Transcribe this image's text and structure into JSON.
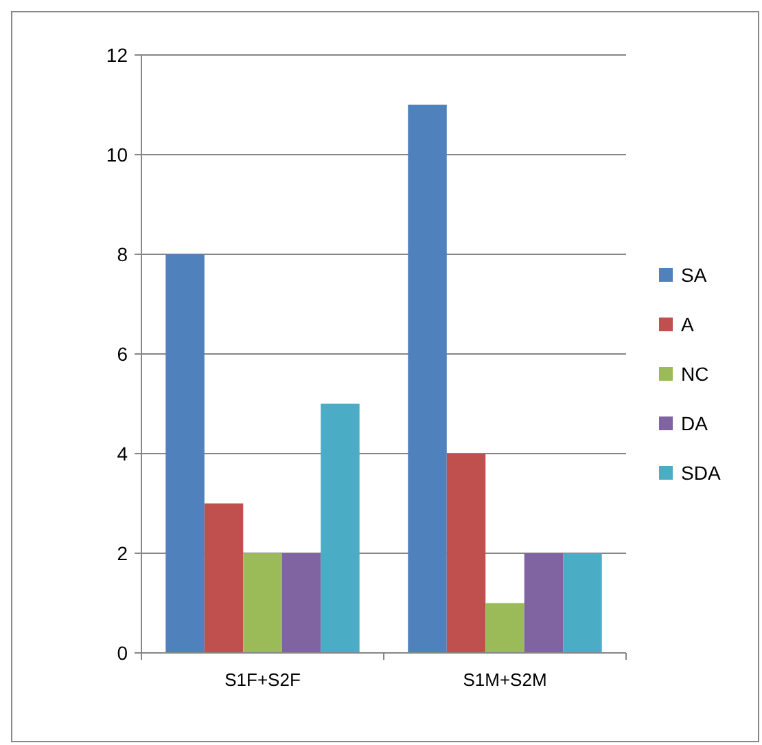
{
  "chart_data": {
    "type": "bar",
    "categories": [
      "S1F+S2F",
      "S1M+S2M"
    ],
    "series": [
      {
        "name": "SA",
        "color": "#4f81bd",
        "values": [
          8,
          11
        ]
      },
      {
        "name": "A",
        "color": "#c0504d",
        "values": [
          3,
          4
        ]
      },
      {
        "name": "NC",
        "color": "#9bbb59",
        "values": [
          2,
          1
        ]
      },
      {
        "name": "DA",
        "color": "#8064a2",
        "values": [
          2,
          2
        ]
      },
      {
        "name": "SDA",
        "color": "#4bacc6",
        "values": [
          5,
          2
        ]
      }
    ],
    "ylim": [
      0,
      12
    ],
    "yticks": [
      0,
      2,
      4,
      6,
      8,
      10,
      12
    ],
    "grid": "y",
    "legend": "right"
  }
}
